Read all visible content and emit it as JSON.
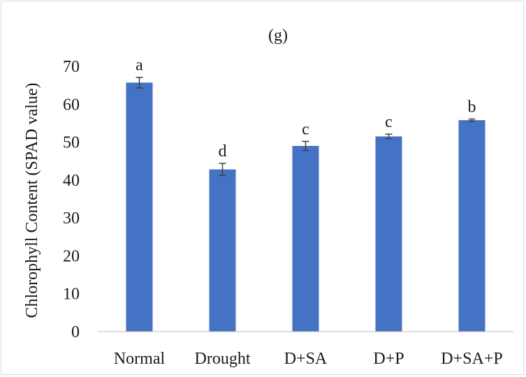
{
  "chart_data": {
    "type": "bar",
    "title": "(g)",
    "xlabel": "",
    "ylabel": "Chlorophyll Content (SPAD value)",
    "categories": [
      "Normal",
      "Drought",
      "D+SA",
      "D+P",
      "D+SA+P"
    ],
    "values": [
      65.7,
      42.8,
      49.0,
      51.5,
      55.8
    ],
    "errors": [
      1.4,
      1.6,
      1.2,
      0.6,
      0.3
    ],
    "significance_letters": [
      "a",
      "d",
      "c",
      "c",
      "b"
    ],
    "ylim": [
      0,
      70
    ],
    "yticks": [
      "0",
      "10",
      "20",
      "30",
      "40",
      "50",
      "60",
      "70"
    ],
    "grid": false,
    "legend": "none",
    "bar_color": "#4472c4",
    "error_color": "#404040"
  }
}
